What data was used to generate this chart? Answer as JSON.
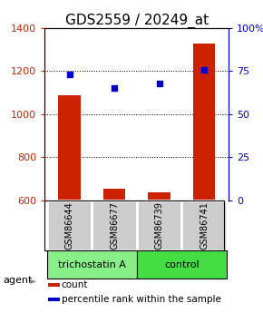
{
  "title": "GDS2559 / 20249_at",
  "samples": [
    "GSM86644",
    "GSM86677",
    "GSM86739",
    "GSM86741"
  ],
  "bar_values": [
    1090,
    655,
    635,
    1330
  ],
  "dot_values": [
    73,
    65,
    68,
    76
  ],
  "ylim_left": [
    600,
    1400
  ],
  "ylim_right": [
    0,
    100
  ],
  "yticks_left": [
    600,
    800,
    1000,
    1200,
    1400
  ],
  "yticks_right": [
    0,
    25,
    50,
    75,
    100
  ],
  "ytick_labels_right": [
    "0",
    "25",
    "50",
    "75",
    "100%"
  ],
  "bar_color": "#cc2200",
  "dot_color": "#0000cc",
  "bar_width": 0.5,
  "agent_groups": [
    {
      "label": "trichostatin A",
      "spans": [
        0,
        1
      ],
      "color": "#88ee88"
    },
    {
      "label": "control",
      "spans": [
        2,
        3
      ],
      "color": "#44dd44"
    }
  ],
  "legend_items": [
    {
      "color": "#cc2200",
      "label": "count"
    },
    {
      "color": "#0000cc",
      "label": "percentile rank within the sample"
    }
  ],
  "sample_box_color": "#cccccc",
  "left_color": "#cc2200",
  "right_color": "#0000cc",
  "title_fontsize": 11,
  "tick_fontsize": 8,
  "sample_fontsize": 7,
  "legend_fontsize": 7.5,
  "agent_fontsize": 8
}
